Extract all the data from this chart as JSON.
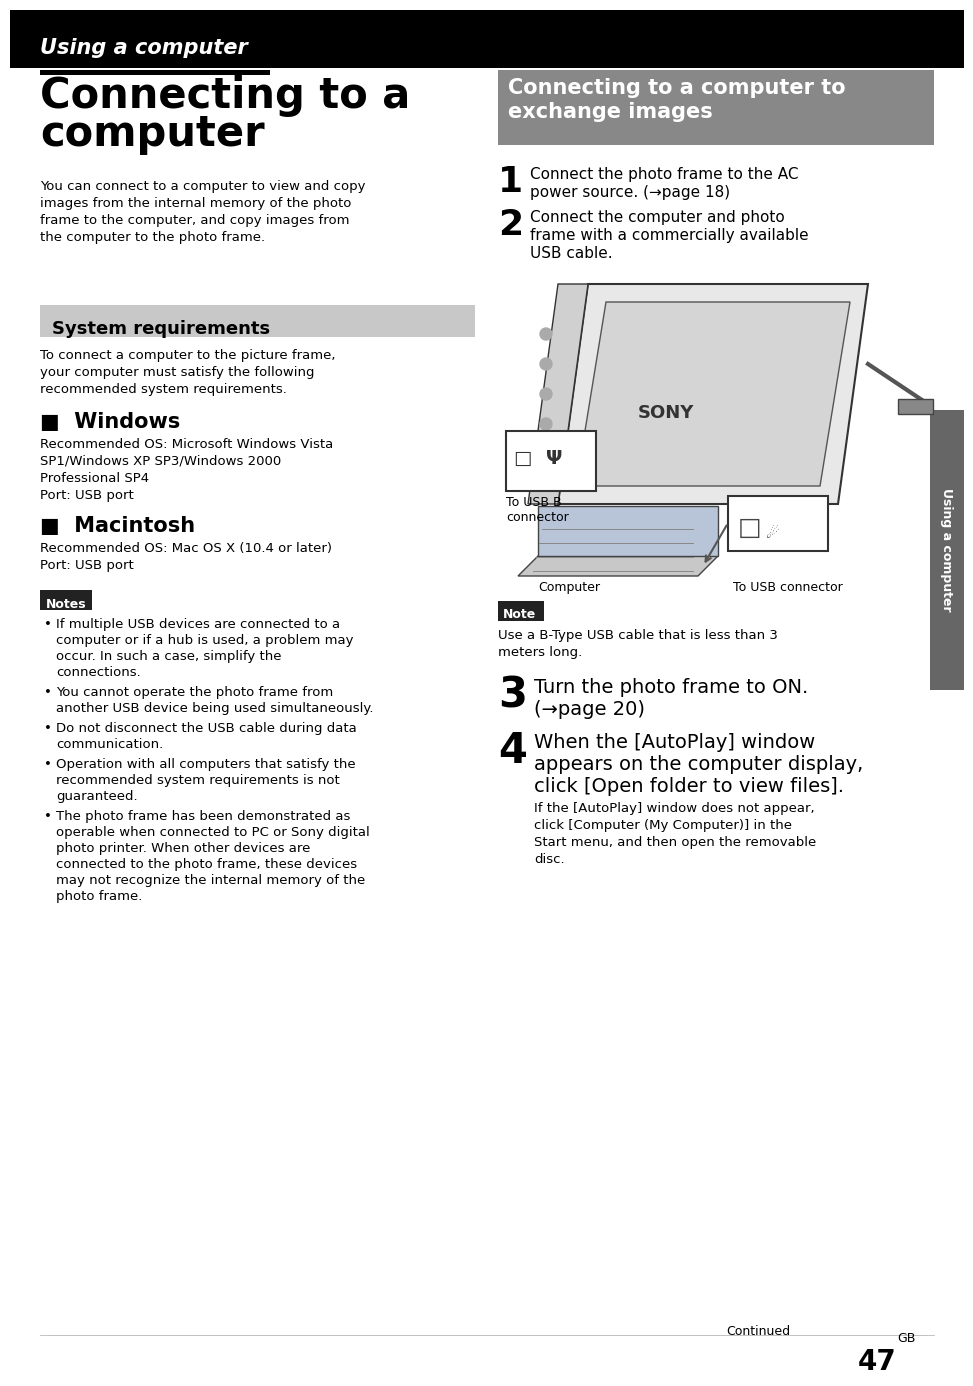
{
  "page_bg": "#ffffff",
  "header_bg": "#000000",
  "header_text": "Using a computer",
  "header_text_color": "#ffffff",
  "left_col_title_line1": "Connecting to a",
  "left_col_title_line2": "computer",
  "left_col_intro": "You can connect to a computer to view and copy images from the internal memory of the photo frame to the computer, and copy images from the computer to the photo frame.",
  "sysreq_bg": "#c8c8c8",
  "sysreq_title": "System requirements",
  "sysreq_intro": "To connect a computer to the picture frame, your computer must satisfy the following recommended system requirements.",
  "windows_title": "■  Windows",
  "windows_lines": [
    "Recommended OS: Microsoft Windows Vista",
    "SP1/Windows XP SP3/Windows 2000",
    "Professional SP4",
    "Port: USB port"
  ],
  "mac_title": "■  Macintosh",
  "mac_lines": [
    "Recommended OS: Mac OS X (10.4 or later)",
    "Port: USB port"
  ],
  "notes_bg": "#222222",
  "notes_title": "Notes",
  "notes_bullets": [
    "If multiple USB devices are connected to a computer or if a hub is used, a problem may occur. In such a case, simplify the connections.",
    "You cannot operate the photo frame from another USB device being used simultaneously.",
    "Do not disconnect the USB cable during data communication.",
    "Operation with all computers that satisfy the recommended system requirements is not guaranteed.",
    "The photo frame has been demonstrated as operable when connected to PC or Sony digital photo printer. When other devices are connected to the photo frame, these devices may not recognize the internal memory of the photo frame."
  ],
  "right_title_line1": "Connecting to a computer to",
  "right_title_line2": "exchange images",
  "right_title_bg": "#888888",
  "right_title_color": "#ffffff",
  "step1_num": "1",
  "step1_text_lines": [
    "Connect the photo frame to the AC",
    "power source. (→page 18)"
  ],
  "step2_num": "2",
  "step2_text_lines": [
    "Connect the computer and photo",
    "frame with a commercially available",
    "USB cable."
  ],
  "usb_b_label": "To USB B\nconnector",
  "computer_label": "Computer",
  "usb_connector_label": "To USB connector",
  "note_bg": "#222222",
  "note_title": "Note",
  "note_body_lines": [
    "Use a B-Type USB cable that is less than 3",
    "meters long."
  ],
  "step3_num": "3",
  "step3_text_lines": [
    "Turn the photo frame to ON.",
    "(→page 20)"
  ],
  "step4_num": "4",
  "step4_bold_lines": [
    "When the [AutoPlay] window",
    "appears on the computer display,",
    "click [Open folder to view files]."
  ],
  "step4_body_lines": [
    "If the [AutoPlay] window does not appear,",
    "click [Computer (My Computer)] in the",
    "Start menu, and then open the removable",
    "disc."
  ],
  "sidebar_text": "Using a computer",
  "sidebar_bg": "#666666",
  "footer_continued": "Continued",
  "footer_page": "47",
  "footer_gb": "GB"
}
